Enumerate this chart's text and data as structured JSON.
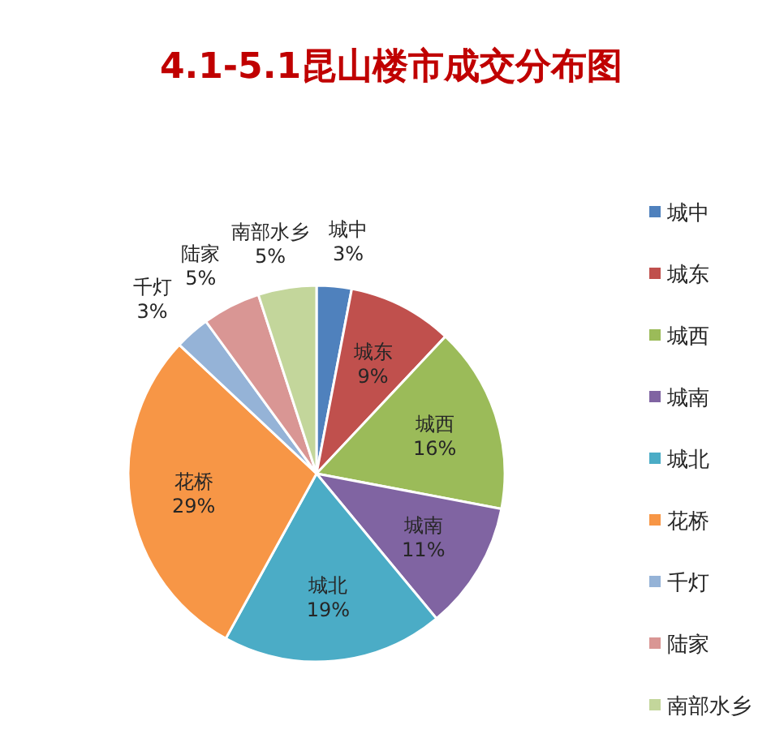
{
  "chart_data": {
    "type": "pie",
    "title": "4.1-5.1昆山楼市成交分布图",
    "categories": [
      "城中",
      "城东",
      "城西",
      "城南",
      "城北",
      "花桥",
      "千灯",
      "陆家",
      "南部水乡"
    ],
    "values": [
      3,
      9,
      16,
      11,
      19,
      29,
      3,
      5,
      5
    ],
    "colors": [
      "#4f81bd",
      "#c0504d",
      "#9bbb59",
      "#8064a2",
      "#4bacc6",
      "#f79646",
      "#95b3d7",
      "#d99694",
      "#c3d69b"
    ],
    "value_labels": [
      "3%",
      "9%",
      "16%",
      "11%",
      "19%",
      "29%",
      "3%",
      "5%",
      "5%"
    ],
    "legend": "right"
  }
}
